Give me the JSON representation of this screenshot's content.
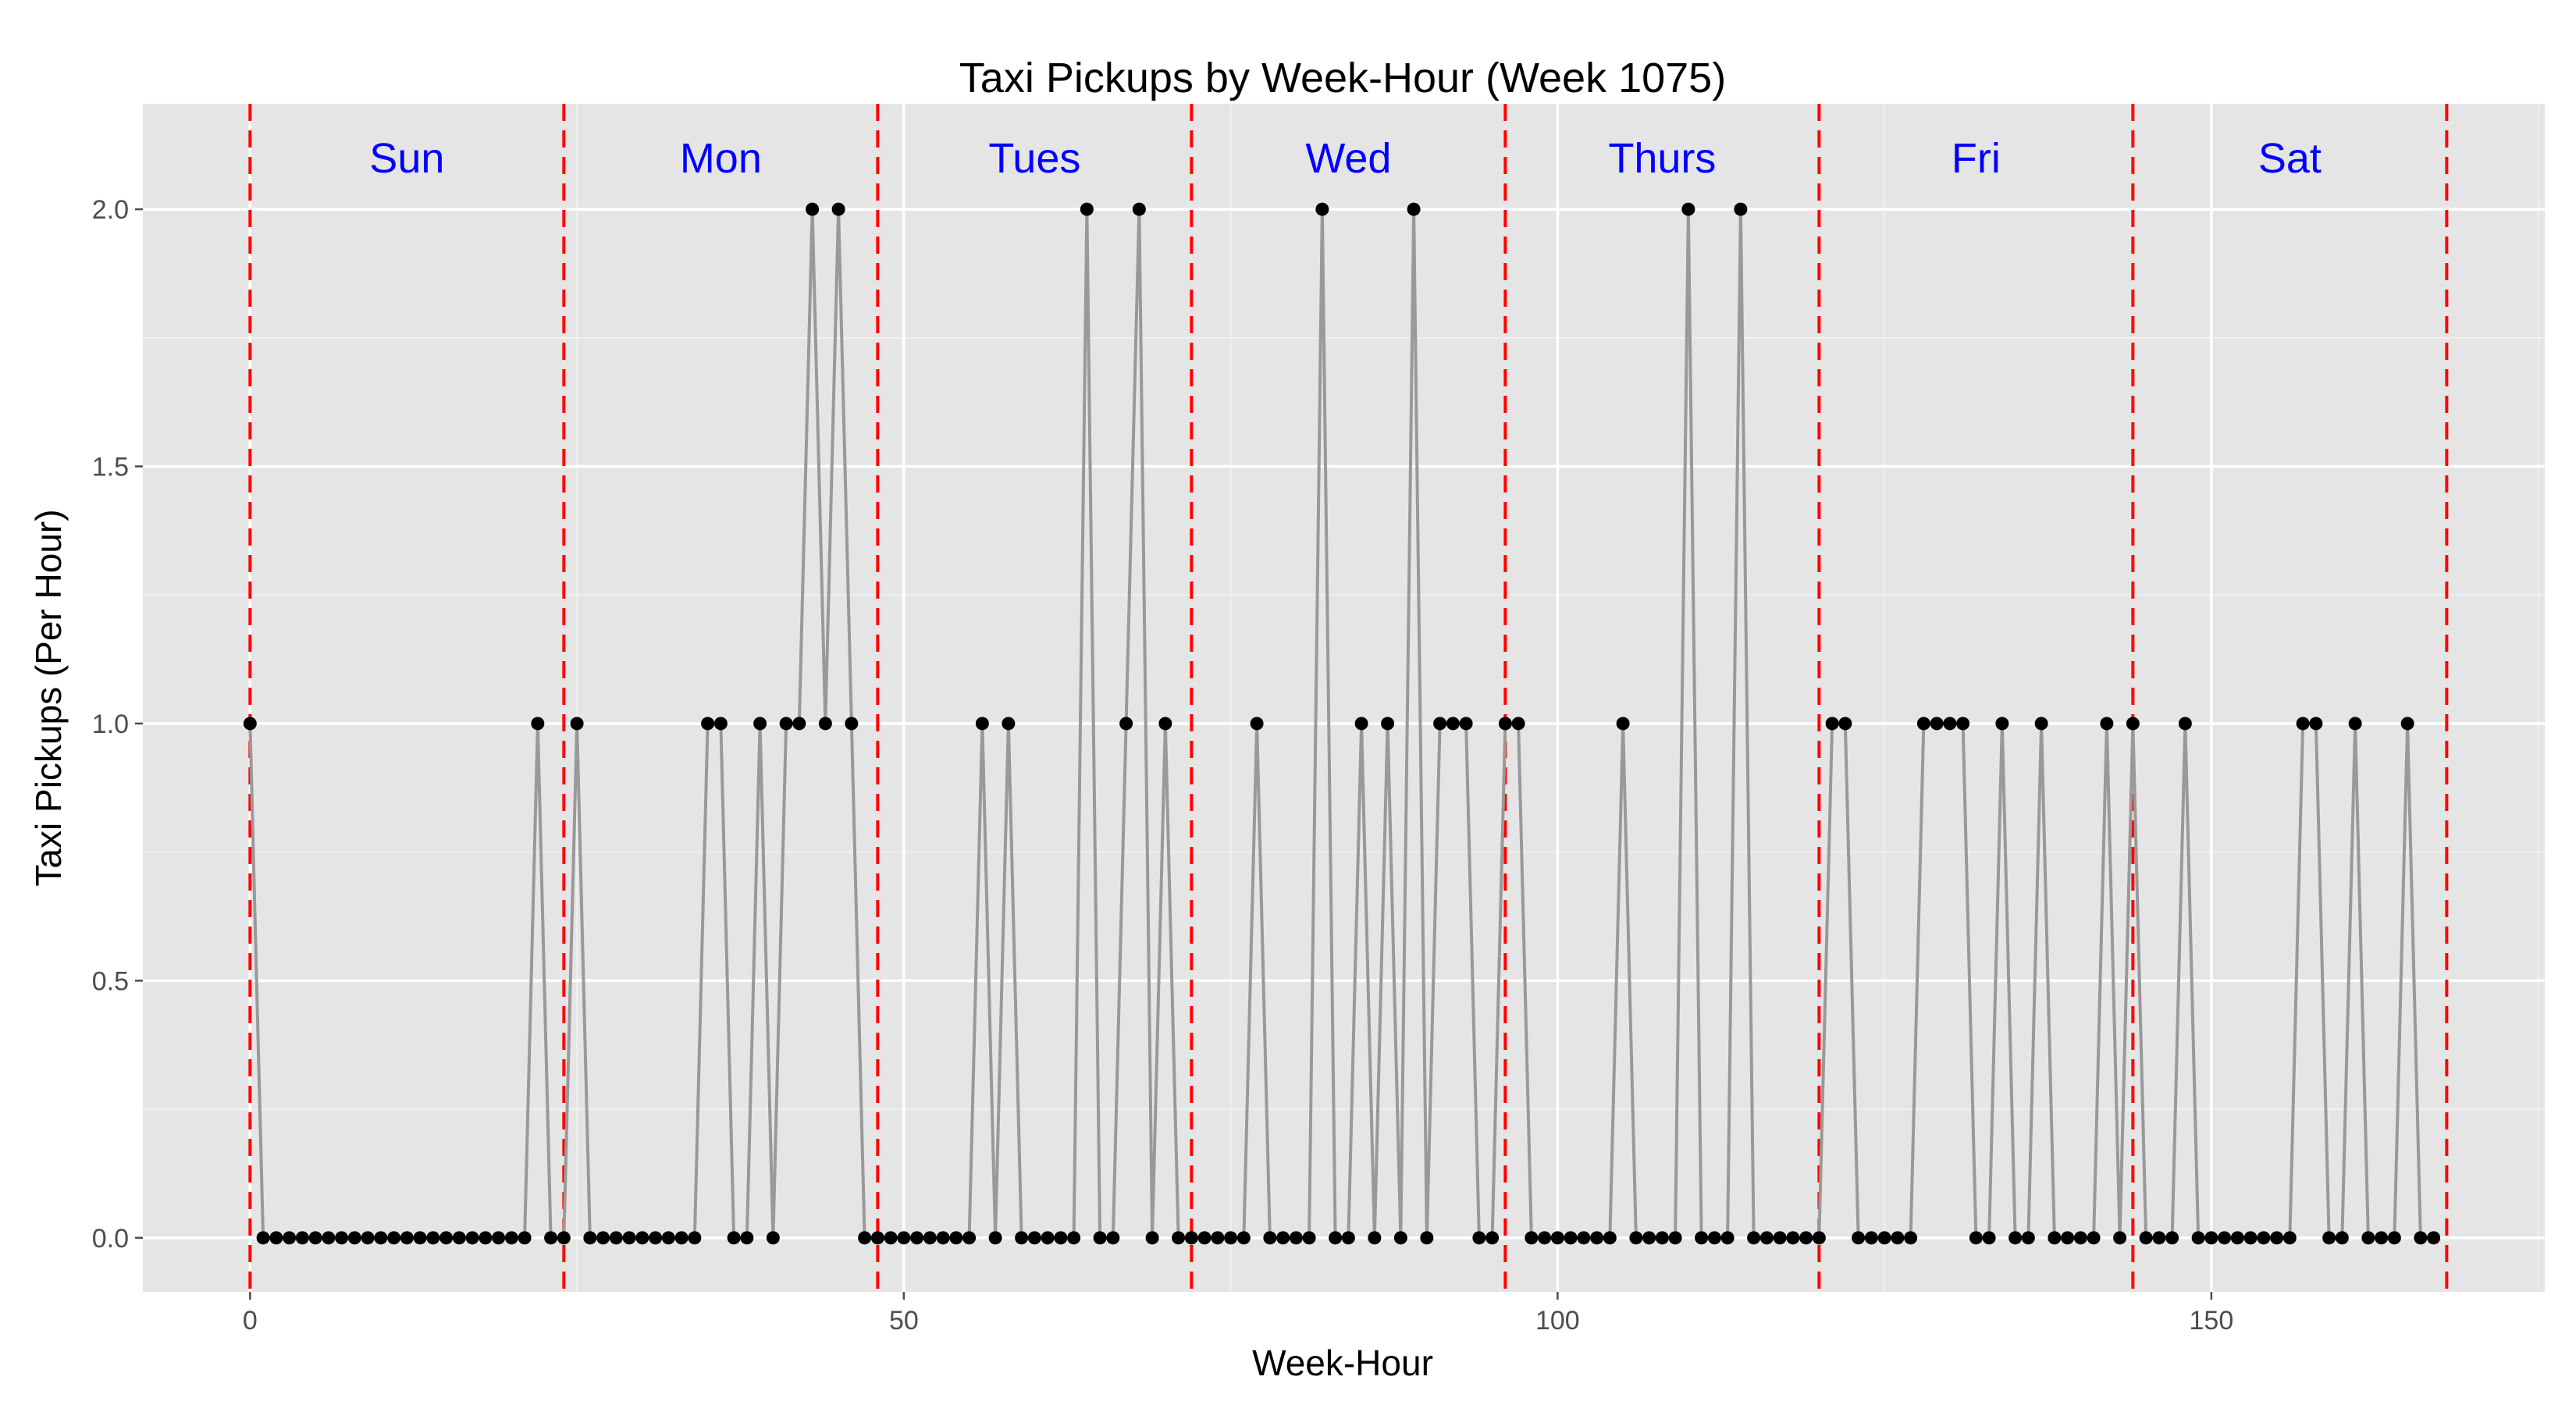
{
  "chart_data": {
    "type": "line",
    "title": "Taxi Pickups by Week-Hour (Week 1075)",
    "xlabel": "Week-Hour",
    "ylabel": "Taxi Pickups (Per Hour)",
    "xlim": [
      -8.2,
      175.5
    ],
    "ylim": [
      -0.105,
      2.205
    ],
    "x_ticks": [
      0,
      50,
      100,
      150
    ],
    "x_tick_labels": [
      "0",
      "50",
      "100",
      "150"
    ],
    "y_ticks": [
      0.0,
      0.5,
      1.0,
      1.5,
      2.0
    ],
    "y_tick_labels": [
      "0.0",
      "0.5",
      "1.0",
      "1.5",
      "2.0"
    ],
    "grid": true,
    "background": "#e5e5e5",
    "grid_color": "#ffffff",
    "line_color": "#999999",
    "point_color": "#000000",
    "day_divider_color": "#ff0000",
    "day_label_color": "#0000ff",
    "day_dividers": [
      0,
      24,
      48,
      72,
      96,
      120,
      144,
      168
    ],
    "day_labels": [
      {
        "label": "Sun",
        "x": 12
      },
      {
        "label": "Mon",
        "x": 36
      },
      {
        "label": "Tues",
        "x": 60
      },
      {
        "label": "Wed",
        "x": 84
      },
      {
        "label": "Thurs",
        "x": 108
      },
      {
        "label": "Fri",
        "x": 132
      },
      {
        "label": "Sat",
        "x": 156
      }
    ],
    "day_label_y": 2.1,
    "x": [
      0,
      1,
      2,
      3,
      4,
      5,
      6,
      7,
      8,
      9,
      10,
      11,
      12,
      13,
      14,
      15,
      16,
      17,
      18,
      19,
      20,
      21,
      22,
      23,
      24,
      25,
      26,
      27,
      28,
      29,
      30,
      31,
      32,
      33,
      34,
      35,
      36,
      37,
      38,
      39,
      40,
      41,
      42,
      43,
      44,
      45,
      46,
      47,
      48,
      49,
      50,
      51,
      52,
      53,
      54,
      55,
      56,
      57,
      58,
      59,
      60,
      61,
      62,
      63,
      64,
      65,
      66,
      67,
      68,
      69,
      70,
      71,
      72,
      73,
      74,
      75,
      76,
      77,
      78,
      79,
      80,
      81,
      82,
      83,
      84,
      85,
      86,
      87,
      88,
      89,
      90,
      91,
      92,
      93,
      94,
      95,
      96,
      97,
      98,
      99,
      100,
      101,
      102,
      103,
      104,
      105,
      106,
      107,
      108,
      109,
      110,
      111,
      112,
      113,
      114,
      115,
      116,
      117,
      118,
      119,
      120,
      121,
      122,
      123,
      124,
      125,
      126,
      127,
      128,
      129,
      130,
      131,
      132,
      133,
      134,
      135,
      136,
      137,
      138,
      139,
      140,
      141,
      142,
      143,
      144,
      145,
      146,
      147,
      148,
      149,
      150,
      151,
      152,
      153,
      154,
      155,
      156,
      157,
      158,
      159,
      160,
      161,
      162,
      163,
      164,
      165,
      166,
      167
    ],
    "series": [
      {
        "values": [
          1,
          0,
          0,
          0,
          0,
          0,
          0,
          0,
          0,
          0,
          0,
          0,
          0,
          0,
          0,
          0,
          0,
          0,
          0,
          0,
          0,
          0,
          1,
          0,
          0,
          1,
          0,
          0,
          0,
          0,
          0,
          0,
          0,
          0,
          0,
          1,
          1,
          0,
          0,
          1,
          0,
          1,
          1,
          2,
          1,
          2,
          1,
          0,
          0,
          0,
          0,
          0,
          0,
          0,
          0,
          0,
          1,
          0,
          1,
          0,
          0,
          0,
          0,
          0,
          2,
          0,
          0,
          1,
          2,
          0,
          1,
          0,
          0,
          0,
          0,
          0,
          0,
          1,
          0,
          0,
          0,
          0,
          2,
          0,
          0,
          1,
          0,
          1,
          0,
          2,
          0,
          1,
          1,
          1,
          0,
          0,
          1,
          1,
          0,
          0,
          0,
          0,
          0,
          0,
          0,
          1,
          0,
          0,
          0,
          0,
          2,
          0,
          0,
          0,
          2,
          0,
          0,
          0,
          0,
          0,
          0,
          1,
          1,
          0,
          0,
          0,
          0,
          0,
          1,
          1,
          1,
          1,
          0,
          0,
          1,
          0,
          0,
          1,
          0,
          0,
          0,
          0,
          1,
          0,
          1,
          0,
          0,
          0,
          1,
          0,
          0,
          0,
          0,
          0,
          0,
          0,
          0,
          1,
          1,
          0,
          0,
          1,
          0,
          0,
          0,
          1,
          0,
          0
        ]
      }
    ]
  }
}
